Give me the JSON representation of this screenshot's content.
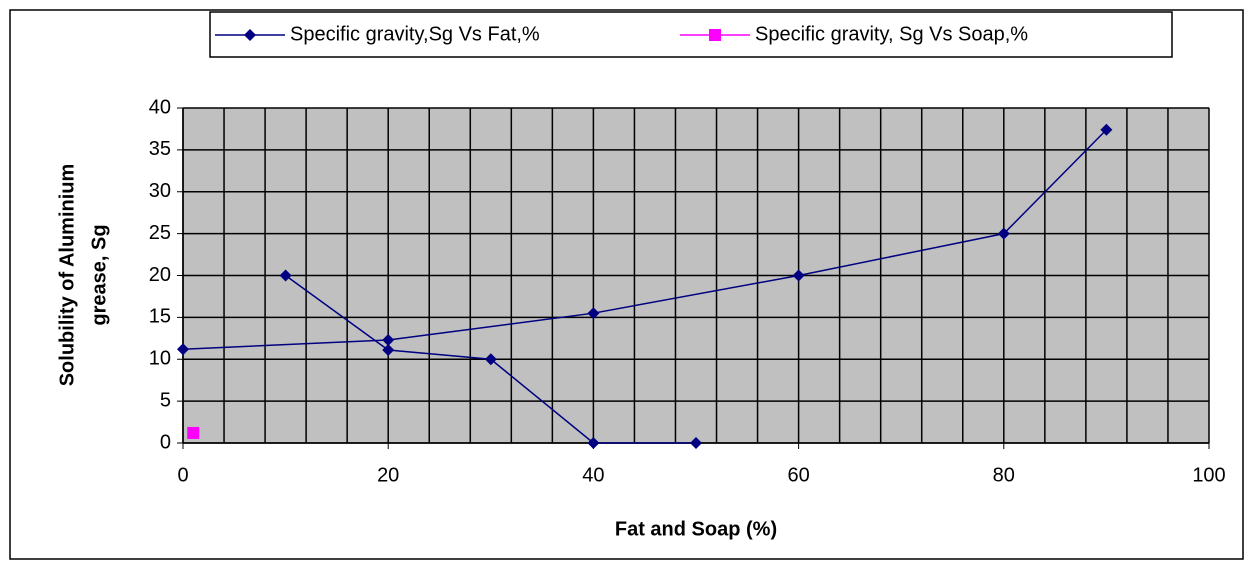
{
  "chart_data": {
    "type": "line",
    "xlabel": "Fat and Soap (%)",
    "ylabel": [
      "Solubility of Aluminium",
      "grease, Sg"
    ],
    "series": [
      {
        "name": "Specific gravity,Sg Vs Fat,%",
        "color": "#000080",
        "marker": "diamond",
        "x": [
          0,
          20,
          40,
          60,
          80,
          90,
          null,
          10,
          20,
          30,
          40,
          50
        ],
        "values": [
          11.2,
          12.3,
          15.5,
          20,
          25,
          37.4,
          null,
          20,
          11.1,
          10,
          0,
          0
        ]
      },
      {
        "name": "Specific gravity, Sg Vs Soap,%",
        "color": "#ff00ff",
        "marker": "square",
        "x": [
          1
        ],
        "values": [
          1.2
        ]
      }
    ],
    "xlim": [
      0,
      100
    ],
    "xticks": [
      0,
      20,
      40,
      60,
      80,
      100
    ],
    "xgrid": [
      0,
      4,
      8,
      12,
      16,
      20,
      24,
      28,
      32,
      36,
      40,
      44,
      48,
      52,
      56,
      60,
      64,
      68,
      72,
      76,
      80,
      84,
      88,
      92,
      96,
      100
    ],
    "ylim": [
      0,
      40
    ],
    "yticks": [
      0,
      5,
      10,
      15,
      20,
      25,
      30,
      35,
      40
    ],
    "grid": true,
    "plot_background": "#c0c0c0",
    "legend": "top"
  }
}
